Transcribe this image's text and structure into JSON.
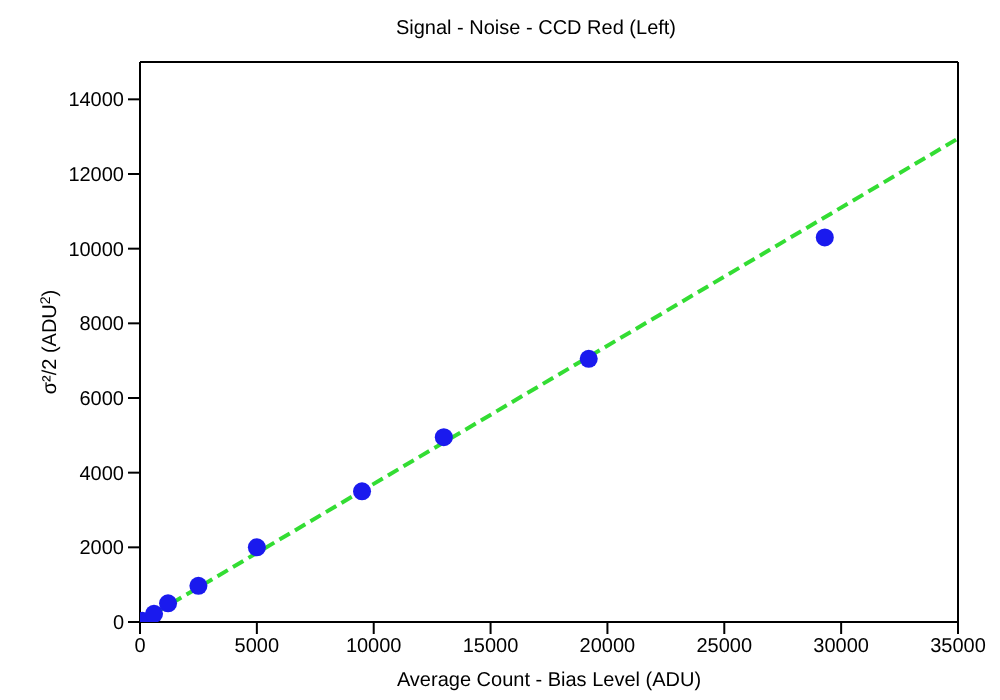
{
  "chart_data": {
    "type": "scatter",
    "title": "Signal - Noise - CCD Red (Left)",
    "xlabel": "Average Count - Bias Level (ADU)",
    "ylabel": "σ²/2 (ADU$^{2}$)",
    "xlim": [
      0,
      35000
    ],
    "xticks": [
      0,
      5000,
      10000,
      15000,
      20000,
      25000,
      30000,
      35000
    ],
    "ylim": [
      0,
      15000
    ],
    "yticks": [
      0,
      2000,
      4000,
      6000,
      8000,
      10000,
      12000,
      14000
    ],
    "series": [
      {
        "color": "#1a1aee",
        "marker": "circle",
        "x": [
          100,
          600,
          1200,
          2500,
          5000,
          9500,
          13000,
          19200,
          29300
        ],
        "values": [
          30,
          220,
          500,
          970,
          2000,
          3500,
          4950,
          7050,
          10300
        ]
      },
      {
        "type": "line",
        "color": "#33dd33",
        "line_style": "dashed",
        "marker": "none",
        "x": [
          0,
          35000
        ],
        "values": [
          0,
          12950
        ]
      }
    ]
  }
}
